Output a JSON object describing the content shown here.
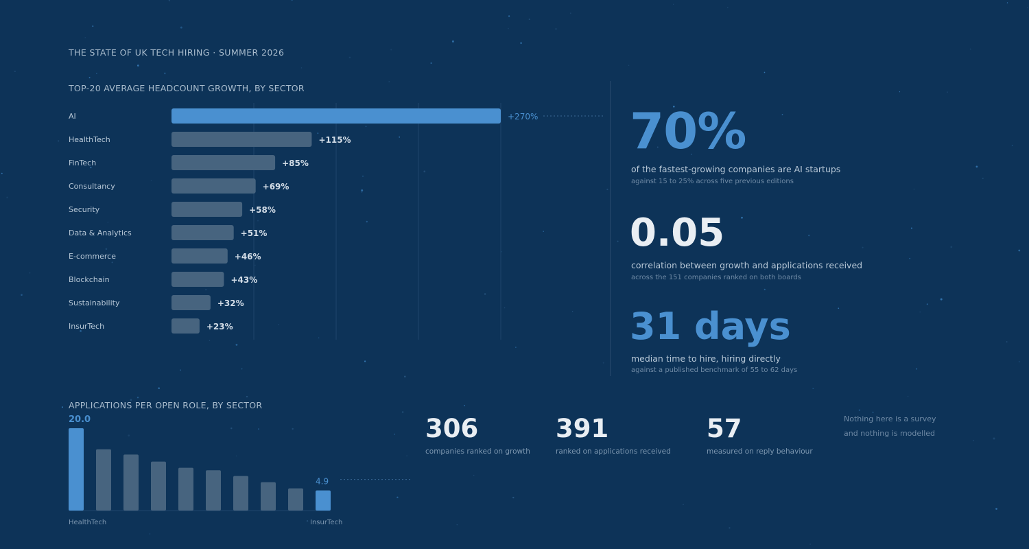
{
  "report_title": "THE STATE OF UK TECH HIRING · SUMMER 2026",
  "stats": [
    {
      "value": "70%",
      "description": "of the fastest-growing companies are AI startups",
      "subtext": "against 15 to 25% across five previous editions"
    },
    {
      "value": "0.05",
      "description": "correlation between growth and applications received",
      "subtext": "across the 151 companies ranked on both boards"
    },
    {
      "value": "31 days",
      "description": "median time to hire, hiring directly",
      "subtext": "against a published benchmark of 55 to 62 days"
    }
  ],
  "counts": [
    {
      "value": "306",
      "label": "companies ranked on growth"
    },
    {
      "value": "391",
      "label": "ranked on applications received"
    },
    {
      "value": "57",
      "label": "measured on reply behaviour"
    }
  ],
  "note": [
    "Nothing here is a survey",
    "and nothing is modelled"
  ],
  "colors": {
    "background": "#0d3358",
    "highlight": "#4a90d0",
    "bar_default": "#47647f",
    "grid": "#1f456c"
  },
  "chart_data": [
    {
      "type": "bar",
      "orientation": "horizontal",
      "title": "TOP-20 AVERAGE HEADCOUNT GROWTH, BY SECTOR",
      "categories": [
        "AI",
        "HealthTech",
        "FinTech",
        "Consultancy",
        "Security",
        "Data & Analytics",
        "E-commerce",
        "Blockchain",
        "Sustainability",
        "InsurTech"
      ],
      "values": [
        270,
        115,
        85,
        69,
        58,
        51,
        46,
        43,
        32,
        23
      ],
      "value_labels": [
        "+270%",
        "+115%",
        "+85%",
        "+69%",
        "+58%",
        "+51%",
        "+46%",
        "+43%",
        "+32%",
        "+23%"
      ],
      "highlight_index": 0,
      "xlim": [
        0,
        270
      ],
      "grid": true,
      "units": "%"
    },
    {
      "type": "bar",
      "orientation": "vertical",
      "title": "APPLICATIONS PER OPEN ROLE, BY SECTOR",
      "values": [
        20.0,
        14.9,
        13.6,
        11.9,
        10.4,
        9.8,
        8.4,
        6.9,
        5.4,
        4.9
      ],
      "first_value_label": "20.0",
      "last_value_label": "4.9",
      "first_category_label": "HealthTech",
      "last_category_label": "InsurTech",
      "highlight_indices": [
        0,
        9
      ],
      "ylim": [
        0,
        20
      ]
    }
  ]
}
